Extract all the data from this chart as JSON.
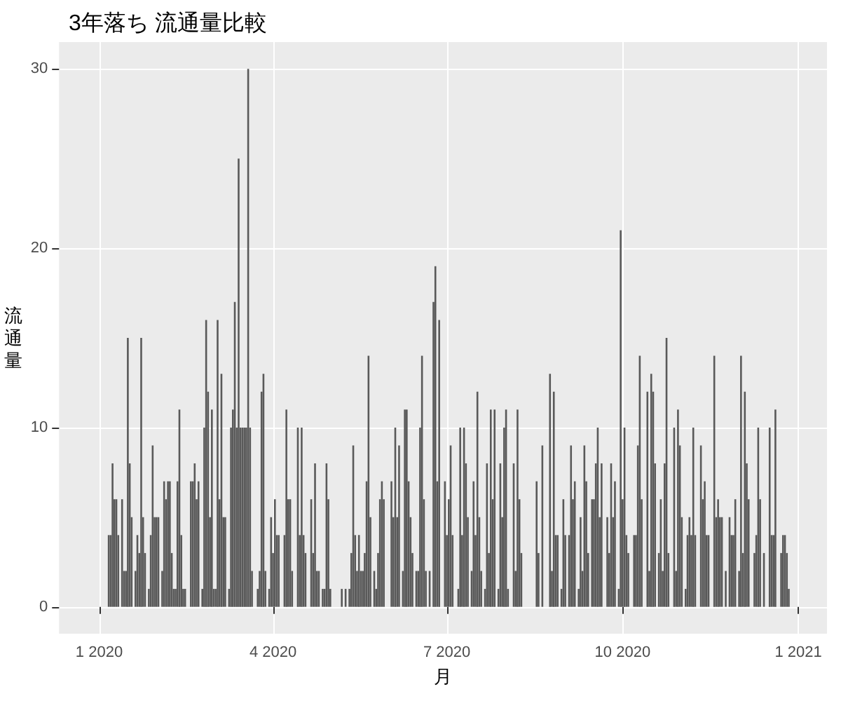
{
  "chart_data": {
    "type": "bar",
    "title": "3年落ち 流通量比較",
    "xlabel": "月",
    "ylabel": "流通量",
    "color": "#595959",
    "grid": true,
    "xlim": [
      "2019-12-11",
      "2021-01-16"
    ],
    "xticks": [
      {
        "value": "2020-01-01",
        "label": "1 2020"
      },
      {
        "value": "2020-04-01",
        "label": "4 2020"
      },
      {
        "value": "2020-07-01",
        "label": "7 2020"
      },
      {
        "value": "2020-10-01",
        "label": "10 2020"
      },
      {
        "value": "2021-01-01",
        "label": "1 2021"
      }
    ],
    "ylim": [
      -1.5,
      31.5
    ],
    "yticks": [
      0,
      10,
      20,
      30
    ],
    "x": [
      "2020-01-06",
      "2020-01-07",
      "2020-01-08",
      "2020-01-09",
      "2020-01-10",
      "2020-01-11",
      "2020-01-13",
      "2020-01-14",
      "2020-01-15",
      "2020-01-16",
      "2020-01-17",
      "2020-01-18",
      "2020-01-20",
      "2020-01-21",
      "2020-01-22",
      "2020-01-23",
      "2020-01-24",
      "2020-01-25",
      "2020-01-27",
      "2020-01-28",
      "2020-01-29",
      "2020-01-30",
      "2020-01-31",
      "2020-02-01",
      "2020-02-03",
      "2020-02-04",
      "2020-02-05",
      "2020-02-06",
      "2020-02-07",
      "2020-02-08",
      "2020-02-09",
      "2020-02-10",
      "2020-02-11",
      "2020-02-12",
      "2020-02-13",
      "2020-02-14",
      "2020-02-15",
      "2020-02-18",
      "2020-02-19",
      "2020-02-20",
      "2020-02-21",
      "2020-02-22",
      "2020-02-24",
      "2020-02-25",
      "2020-02-26",
      "2020-02-27",
      "2020-02-28",
      "2020-02-29",
      "2020-03-01",
      "2020-03-02",
      "2020-03-03",
      "2020-03-04",
      "2020-03-05",
      "2020-03-06",
      "2020-03-07",
      "2020-03-09",
      "2020-03-10",
      "2020-03-11",
      "2020-03-12",
      "2020-03-13",
      "2020-03-14",
      "2020-03-15",
      "2020-03-16",
      "2020-03-17",
      "2020-03-18",
      "2020-03-19",
      "2020-03-20",
      "2020-03-21",
      "2020-03-24",
      "2020-03-25",
      "2020-03-26",
      "2020-03-27",
      "2020-03-28",
      "2020-03-30",
      "2020-03-31",
      "2020-04-01",
      "2020-04-02",
      "2020-04-03",
      "2020-04-04",
      "2020-04-07",
      "2020-04-08",
      "2020-04-09",
      "2020-04-10",
      "2020-04-11",
      "2020-04-14",
      "2020-04-15",
      "2020-04-16",
      "2020-04-17",
      "2020-04-18",
      "2020-04-21",
      "2020-04-22",
      "2020-04-23",
      "2020-04-24",
      "2020-04-25",
      "2020-04-27",
      "2020-04-28",
      "2020-04-29",
      "2020-04-30",
      "2020-05-01",
      "2020-05-07",
      "2020-05-09",
      "2020-05-11",
      "2020-05-12",
      "2020-05-13",
      "2020-05-14",
      "2020-05-15",
      "2020-05-16",
      "2020-05-17",
      "2020-05-18",
      "2020-05-19",
      "2020-05-20",
      "2020-05-21",
      "2020-05-22",
      "2020-05-24",
      "2020-05-25",
      "2020-05-26",
      "2020-05-27",
      "2020-05-28",
      "2020-05-29",
      "2020-06-02",
      "2020-06-03",
      "2020-06-04",
      "2020-06-05",
      "2020-06-06",
      "2020-06-08",
      "2020-06-09",
      "2020-06-10",
      "2020-06-11",
      "2020-06-12",
      "2020-06-13",
      "2020-06-15",
      "2020-06-16",
      "2020-06-17",
      "2020-06-18",
      "2020-06-19",
      "2020-06-20",
      "2020-06-22",
      "2020-06-24",
      "2020-06-25",
      "2020-06-26",
      "2020-06-27",
      "2020-06-30",
      "2020-07-01",
      "2020-07-02",
      "2020-07-03",
      "2020-07-04",
      "2020-07-07",
      "2020-07-08",
      "2020-07-09",
      "2020-07-10",
      "2020-07-11",
      "2020-07-12",
      "2020-07-14",
      "2020-07-15",
      "2020-07-16",
      "2020-07-17",
      "2020-07-18",
      "2020-07-19",
      "2020-07-21",
      "2020-07-22",
      "2020-07-23",
      "2020-07-24",
      "2020-07-25",
      "2020-07-26",
      "2020-07-28",
      "2020-07-29",
      "2020-07-30",
      "2020-07-31",
      "2020-08-01",
      "2020-08-02",
      "2020-08-05",
      "2020-08-06",
      "2020-08-07",
      "2020-08-08",
      "2020-08-09",
      "2020-08-17",
      "2020-08-18",
      "2020-08-20",
      "2020-08-24",
      "2020-08-25",
      "2020-08-26",
      "2020-08-27",
      "2020-08-28",
      "2020-08-30",
      "2020-08-31",
      "2020-09-01",
      "2020-09-03",
      "2020-09-04",
      "2020-09-05",
      "2020-09-06",
      "2020-09-08",
      "2020-09-09",
      "2020-09-10",
      "2020-09-11",
      "2020-09-12",
      "2020-09-13",
      "2020-09-15",
      "2020-09-16",
      "2020-09-17",
      "2020-09-18",
      "2020-09-19",
      "2020-09-20",
      "2020-09-23",
      "2020-09-24",
      "2020-09-25",
      "2020-09-26",
      "2020-09-27",
      "2020-09-29",
      "2020-09-30",
      "2020-10-01",
      "2020-10-02",
      "2020-10-03",
      "2020-10-04",
      "2020-10-07",
      "2020-10-08",
      "2020-10-09",
      "2020-10-10",
      "2020-10-11",
      "2020-10-14",
      "2020-10-15",
      "2020-10-16",
      "2020-10-17",
      "2020-10-18",
      "2020-10-20",
      "2020-10-21",
      "2020-10-22",
      "2020-10-23",
      "2020-10-24",
      "2020-10-25",
      "2020-10-28",
      "2020-10-29",
      "2020-10-30",
      "2020-10-31",
      "2020-11-01",
      "2020-11-03",
      "2020-11-04",
      "2020-11-05",
      "2020-11-06",
      "2020-11-07",
      "2020-11-08",
      "2020-11-11",
      "2020-11-12",
      "2020-11-13",
      "2020-11-14",
      "2020-11-15",
      "2020-11-18",
      "2020-11-19",
      "2020-11-20",
      "2020-11-21",
      "2020-11-22",
      "2020-11-24",
      "2020-11-26",
      "2020-11-27",
      "2020-11-28",
      "2020-11-29",
      "2020-12-01",
      "2020-12-02",
      "2020-12-03",
      "2020-12-04",
      "2020-12-05",
      "2020-12-06",
      "2020-12-09",
      "2020-12-10",
      "2020-12-11",
      "2020-12-12",
      "2020-12-14",
      "2020-12-17",
      "2020-12-18",
      "2020-12-19",
      "2020-12-20",
      "2020-12-23",
      "2020-12-24",
      "2020-12-25",
      "2020-12-26",
      "2020-12-27"
    ],
    "values": [
      4,
      4,
      8,
      6,
      6,
      4,
      6,
      2,
      2,
      15,
      8,
      5,
      2,
      4,
      3,
      15,
      5,
      3,
      1,
      4,
      9,
      5,
      5,
      5,
      2,
      7,
      6,
      7,
      7,
      3,
      1,
      1,
      7,
      11,
      4,
      1,
      1,
      7,
      7,
      8,
      6,
      7,
      1,
      10,
      16,
      12,
      5,
      11,
      1,
      1,
      16,
      6,
      13,
      5,
      5,
      1,
      10,
      11,
      17,
      10,
      25,
      10,
      10,
      10,
      10,
      30,
      10,
      2,
      1,
      2,
      12,
      13,
      2,
      1,
      5,
      3,
      6,
      4,
      4,
      4,
      11,
      6,
      6,
      2,
      10,
      4,
      10,
      4,
      3,
      6,
      3,
      8,
      2,
      2,
      1,
      1,
      8,
      6,
      1,
      1,
      1,
      1,
      3,
      9,
      4,
      2,
      4,
      2,
      2,
      3,
      7,
      14,
      5,
      2,
      1,
      3,
      6,
      7,
      6,
      7,
      5,
      10,
      5,
      9,
      2,
      11,
      11,
      7,
      5,
      3,
      2,
      2,
      10,
      14,
      6,
      2,
      2,
      17,
      19,
      7,
      16,
      7,
      4,
      6,
      9,
      4,
      1,
      10,
      4,
      10,
      8,
      5,
      2,
      7,
      4,
      12,
      5,
      2,
      1,
      8,
      3,
      11,
      6,
      11,
      1,
      8,
      5,
      10,
      11,
      1,
      8,
      2,
      11,
      6,
      3,
      7,
      3,
      9,
      13,
      2,
      12,
      4,
      4,
      1,
      6,
      4,
      4,
      9,
      6,
      7,
      1,
      5,
      2,
      9,
      7,
      3,
      6,
      6,
      8,
      10,
      5,
      8,
      5,
      3,
      8,
      5,
      7,
      1,
      21,
      6,
      10,
      4,
      3,
      4,
      4,
      9,
      14,
      6,
      12,
      2,
      13,
      12,
      8,
      3,
      6,
      2,
      8,
      15,
      3,
      10,
      2,
      11,
      9,
      5,
      1,
      4,
      5,
      4,
      10,
      4,
      9,
      6,
      7,
      4,
      4,
      14,
      5,
      6,
      5,
      5,
      2,
      5,
      4,
      4,
      6,
      2,
      14,
      3,
      12,
      8,
      6,
      3,
      4,
      10,
      6,
      3,
      10,
      4,
      4,
      11,
      3,
      4,
      4,
      3,
      1
    ]
  }
}
